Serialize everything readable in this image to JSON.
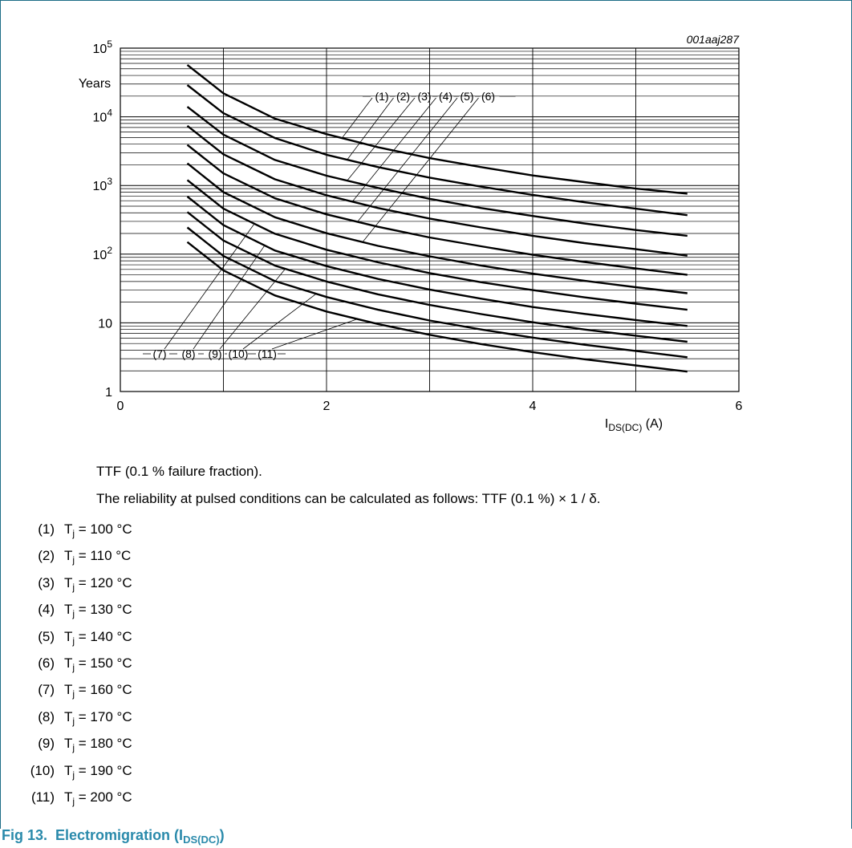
{
  "chart_data": {
    "type": "line",
    "figure_id": "001aaj287",
    "y_unit_label": "Years",
    "x_label_main": "I",
    "x_label_sub": "DS(DC)",
    "x_label_unit": "(A)",
    "y_scale": "log",
    "ylim": [
      1,
      100000
    ],
    "xlim": [
      0,
      6
    ],
    "x_ticks": [
      {
        "value": 0,
        "label": "0"
      },
      {
        "value": 2,
        "label": "2"
      },
      {
        "value": 4,
        "label": "4"
      },
      {
        "value": 6,
        "label": "6"
      }
    ],
    "y_ticks": [
      {
        "value": 1,
        "base": "1",
        "exp": ""
      },
      {
        "value": 10,
        "base": "10",
        "exp": ""
      },
      {
        "value": 100,
        "base": "10",
        "exp": "2"
      },
      {
        "value": 1000,
        "base": "10",
        "exp": "3"
      },
      {
        "value": 10000,
        "base": "10",
        "exp": "4"
      },
      {
        "value": 100000,
        "base": "10",
        "exp": "5"
      }
    ],
    "grid": true,
    "x": [
      0.65,
      1.0,
      1.5,
      2.0,
      2.5,
      3.0,
      3.5,
      4.0,
      4.5,
      5.0,
      5.5
    ],
    "series": [
      {
        "name": "(1)",
        "values": [
          57000,
          22000,
          9400,
          5600,
          3600,
          2500,
          1850,
          1400,
          1120,
          900,
          760
        ]
      },
      {
        "name": "(2)",
        "values": [
          29000,
          11300,
          4900,
          2800,
          1850,
          1300,
          960,
          730,
          570,
          460,
          370
        ]
      },
      {
        "name": "(3)",
        "values": [
          14000,
          5500,
          2350,
          1390,
          920,
          640,
          470,
          360,
          280,
          225,
          185
        ]
      },
      {
        "name": "(4)",
        "values": [
          7400,
          2850,
          1230,
          720,
          470,
          330,
          245,
          185,
          145,
          118,
          95
        ]
      },
      {
        "name": "(5)",
        "values": [
          3900,
          1500,
          650,
          380,
          250,
          175,
          130,
          98,
          77,
          62,
          50
        ]
      },
      {
        "name": "(6)",
        "values": [
          2100,
          800,
          345,
          202,
          132,
          93,
          68,
          52,
          41,
          33,
          27
        ]
      },
      {
        "name": "(7)",
        "values": [
          1200,
          460,
          198,
          116,
          76,
          53,
          39,
          30,
          23.5,
          19,
          15.5
        ]
      },
      {
        "name": "(8)",
        "values": [
          690,
          265,
          113,
          67,
          43.5,
          30.5,
          22.5,
          17,
          13.5,
          11,
          9
        ]
      },
      {
        "name": "(9)",
        "values": [
          410,
          158,
          68,
          40,
          26,
          18.2,
          13.4,
          10.2,
          8,
          6.5,
          5.3
        ]
      },
      {
        "name": "(10)",
        "values": [
          245,
          94,
          40.5,
          23.8,
          15.5,
          10.8,
          8,
          6.1,
          4.8,
          3.9,
          3.15
        ]
      },
      {
        "name": "(11)",
        "values": [
          150,
          58,
          25,
          14.6,
          9.6,
          6.7,
          4.9,
          3.75,
          2.95,
          2.4,
          1.95
        ]
      }
    ],
    "callouts_upper": [
      "(1)",
      "(2)",
      "(3)",
      "(4)",
      "(5)",
      "(6)"
    ],
    "callouts_lower": [
      "(7)",
      "(8)",
      "(9)",
      "(10)",
      "(11)"
    ]
  },
  "notes": {
    "line1": "TTF (0.1 % failure fraction).",
    "line2": "The reliability at pulsed conditions can be calculated as follows: TTF (0.1 %) × 1 / δ."
  },
  "legend": [
    {
      "num": "(1)",
      "text": "= 100 °C"
    },
    {
      "num": "(2)",
      "text": "= 110 °C"
    },
    {
      "num": "(3)",
      "text": "= 120 °C"
    },
    {
      "num": "(4)",
      "text": "= 130 °C"
    },
    {
      "num": "(5)",
      "text": "= 140 °C"
    },
    {
      "num": "(6)",
      "text": "= 150 °C"
    },
    {
      "num": "(7)",
      "text": "= 160 °C"
    },
    {
      "num": "(8)",
      "text": "= 170 °C"
    },
    {
      "num": "(9)",
      "text": "= 180 °C"
    },
    {
      "num": "(10)",
      "text": "= 190 °C"
    },
    {
      "num": "(11)",
      "text": "= 200 °C"
    }
  ],
  "legend_symbol": {
    "main": "T",
    "sub": "j"
  },
  "caption": {
    "prefix": "Fig 13.",
    "title": "Electromigration (I",
    "sub": "DS(DC)",
    "suffix": ")"
  },
  "colors": {
    "frame": "#1d6d86",
    "caption": "#2a8aab",
    "curve": "#000000"
  }
}
